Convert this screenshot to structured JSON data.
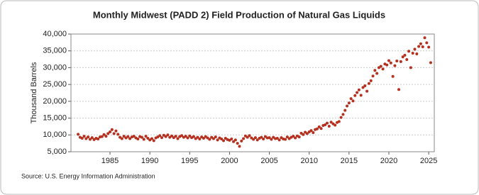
{
  "chart_data": {
    "type": "scatter",
    "title": "Monthly Midwest (PADD 2) Field Production of Natural Gas Liquids",
    "y_label": "Thousand Barrels",
    "source": "Source: U.S. Energy Information Administration",
    "color": "#b5301f",
    "grid": true,
    "xlim": [
      1980.1,
      2025.7
    ],
    "xticks": [
      1985,
      1990,
      1995,
      2000,
      2005,
      2010,
      2015,
      2020,
      2025
    ],
    "ylim": [
      5000,
      40000
    ],
    "yticks": [
      {
        "value": 5000,
        "label": "5,000"
      },
      {
        "value": 10000,
        "label": "10,000"
      },
      {
        "value": 15000,
        "label": "15,000"
      },
      {
        "value": 20000,
        "label": "20,000"
      },
      {
        "value": 25000,
        "label": "25,000"
      },
      {
        "value": 30000,
        "label": "30,000"
      },
      {
        "value": 35000,
        "label": "35,000"
      },
      {
        "value": 40000,
        "label": "40,000"
      }
    ],
    "x": [
      1981,
      1981.25,
      1981.5,
      1981.75,
      1982,
      1982.25,
      1982.5,
      1982.75,
      1983,
      1983.25,
      1983.5,
      1983.75,
      1984,
      1984.25,
      1984.5,
      1984.75,
      1985,
      1985.25,
      1985.5,
      1985.75,
      1986,
      1986.25,
      1986.5,
      1986.75,
      1987,
      1987.25,
      1987.5,
      1987.75,
      1988,
      1988.25,
      1988.5,
      1988.75,
      1989,
      1989.25,
      1989.5,
      1989.75,
      1990,
      1990.25,
      1990.5,
      1990.75,
      1991,
      1991.25,
      1991.5,
      1991.75,
      1992,
      1992.25,
      1992.5,
      1992.75,
      1993,
      1993.25,
      1993.5,
      1993.75,
      1994,
      1994.25,
      1994.5,
      1994.75,
      1995,
      1995.25,
      1995.5,
      1995.75,
      1996,
      1996.25,
      1996.5,
      1996.75,
      1997,
      1997.25,
      1997.5,
      1997.75,
      1998,
      1998.25,
      1998.5,
      1998.75,
      1999,
      1999.25,
      1999.5,
      1999.75,
      2000,
      2000.25,
      2000.5,
      2000.75,
      2001,
      2001.25,
      2001.5,
      2001.75,
      2002,
      2002.25,
      2002.5,
      2002.75,
      2003,
      2003.25,
      2003.5,
      2003.75,
      2004,
      2004.25,
      2004.5,
      2004.75,
      2005,
      2005.25,
      2005.5,
      2005.75,
      2006,
      2006.25,
      2006.5,
      2006.75,
      2007,
      2007.25,
      2007.5,
      2007.75,
      2008,
      2008.25,
      2008.5,
      2008.75,
      2009,
      2009.25,
      2009.5,
      2009.75,
      2010,
      2010.25,
      2010.5,
      2010.75,
      2011,
      2011.25,
      2011.5,
      2011.75,
      2012,
      2012.25,
      2012.5,
      2012.75,
      2013,
      2013.25,
      2013.5,
      2013.75,
      2014,
      2014.25,
      2014.5,
      2014.75,
      2015,
      2015.25,
      2015.5,
      2015.75,
      2016,
      2016.25,
      2016.5,
      2016.75,
      2017,
      2017.25,
      2017.5,
      2017.75,
      2018,
      2018.25,
      2018.5,
      2018.75,
      2019,
      2019.25,
      2019.5,
      2019.75,
      2020,
      2020.25,
      2020.5,
      2020.75,
      2021,
      2021.25,
      2021.5,
      2021.75,
      2022,
      2022.25,
      2022.5,
      2022.75,
      2023,
      2023.25,
      2023.5,
      2023.75,
      2024,
      2024.25,
      2024.5,
      2024.75,
      2025,
      2025.25
    ],
    "values": [
      10200,
      9300,
      9000,
      9600,
      8900,
      9400,
      8700,
      9200,
      8600,
      9000,
      8800,
      9400,
      9500,
      10100,
      9600,
      10400,
      10900,
      11600,
      10400,
      11200,
      10200,
      9300,
      8900,
      9600,
      9100,
      9500,
      8900,
      9400,
      9600,
      9100,
      8800,
      9500,
      9300,
      8700,
      9600,
      9000,
      8500,
      8900,
      8300,
      9100,
      9400,
      9800,
      9200,
      9900,
      9500,
      10000,
      9300,
      9700,
      9200,
      9600,
      8900,
      9500,
      9800,
      9300,
      9600,
      9100,
      9700,
      9200,
      9500,
      8900,
      9300,
      8800,
      9400,
      9000,
      9500,
      9100,
      8700,
      9300,
      8900,
      9400,
      8500,
      9100,
      8800,
      8300,
      9000,
      8600,
      8400,
      8800,
      8000,
      8500,
      7500,
      6600,
      8200,
      8900,
      9700,
      9300,
      9800,
      9100,
      8700,
      9200,
      8500,
      9000,
      9300,
      8800,
      9500,
      9100,
      9200,
      8700,
      9300,
      8900,
      9000,
      8500,
      9200,
      8800,
      8700,
      9400,
      8900,
      9300,
      9600,
      9100,
      9700,
      9400,
      10500,
      10100,
      10800,
      10400,
      10900,
      11300,
      10700,
      11600,
      11800,
      12400,
      11900,
      12800,
      13000,
      13500,
      12600,
      13800,
      13300,
      12900,
      13700,
      14000,
      15200,
      16100,
      17300,
      18600,
      19500,
      20800,
      20100,
      21700,
      22600,
      23400,
      21800,
      24100,
      24600,
      23000,
      25300,
      26100,
      27500,
      29200,
      28300,
      30000,
      30400,
      29600,
      31100,
      30800,
      32100,
      31400,
      27400,
      30600,
      32000,
      23500,
      31800,
      33200,
      33700,
      32400,
      34900,
      30000,
      34300,
      35500,
      34100,
      36300,
      37100,
      36200,
      38900,
      37400,
      36100,
      31500
    ]
  }
}
